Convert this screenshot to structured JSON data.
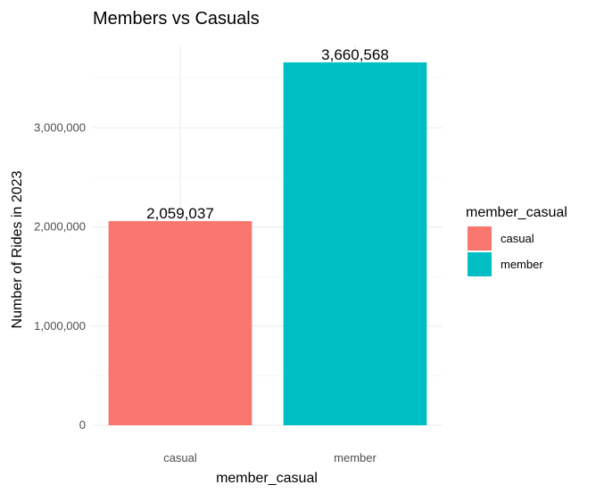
{
  "chart_data": {
    "type": "bar",
    "title": "Members vs Casuals",
    "xlabel": "member_casual",
    "ylabel": "Number of Rides in 2023",
    "categories": [
      "casual",
      "member"
    ],
    "values": [
      2059037,
      3660568
    ],
    "value_labels": [
      "2,059,037",
      "3,660,568"
    ],
    "colors": [
      "#F8766D",
      "#00BFC4"
    ],
    "ylim": [
      0,
      3840000
    ],
    "yticks": [
      0,
      1000000,
      2000000,
      3000000
    ],
    "ytick_labels": [
      "0",
      "1,000,000",
      "2,000,000",
      "3,000,000"
    ],
    "grid": true,
    "legend": {
      "title": "member_casual",
      "placement": "right",
      "entries": [
        "casual",
        "member"
      ]
    }
  }
}
